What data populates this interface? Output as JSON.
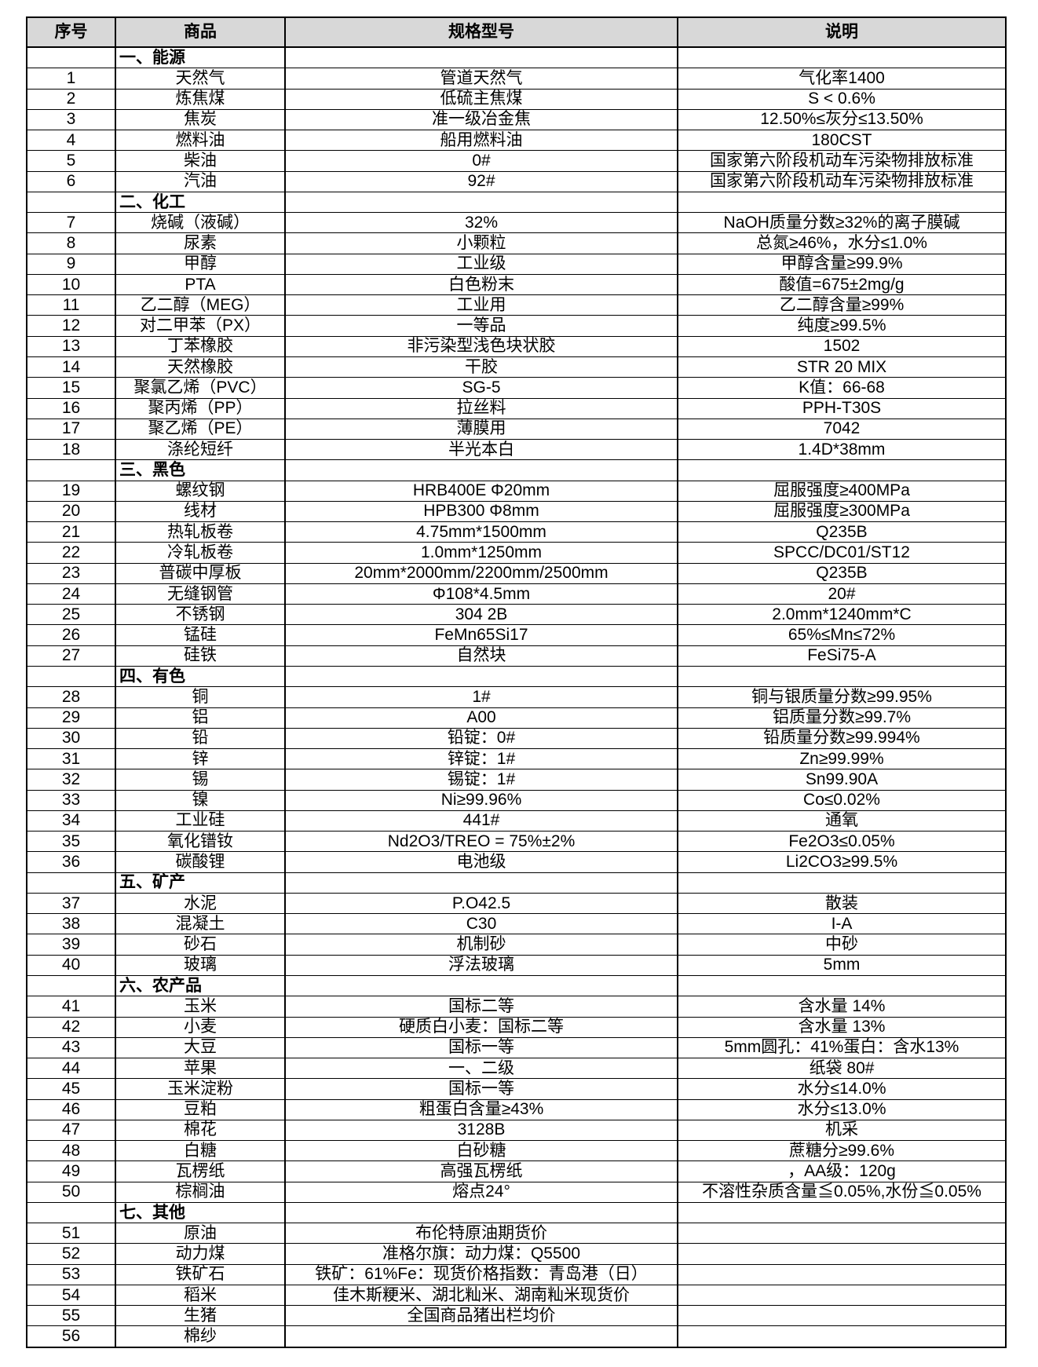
{
  "page": {
    "background": "#ffffff"
  },
  "table": {
    "columns": [
      "序号",
      "商品",
      "规格型号",
      "说明"
    ],
    "header_bg": "#d8d8d8",
    "border_color": "#000000",
    "sections": [
      {
        "title": "一、能源",
        "rows": [
          {
            "no": "1",
            "name": "天然气",
            "spec": "管道天然气",
            "desc": "气化率1400"
          },
          {
            "no": "2",
            "name": "炼焦煤",
            "spec": "低硫主焦煤",
            "desc": "S < 0.6%"
          },
          {
            "no": "3",
            "name": "焦炭",
            "spec": "准一级冶金焦",
            "desc": "12.50%≤灰分≤13.50%"
          },
          {
            "no": "4",
            "name": "燃料油",
            "spec": "船用燃料油",
            "desc": "180CST"
          },
          {
            "no": "5",
            "name": "柴油",
            "spec": "0#",
            "desc": "国家第六阶段机动车污染物排放标准"
          },
          {
            "no": "6",
            "name": "汽油",
            "spec": "92#",
            "desc": "国家第六阶段机动车污染物排放标准"
          }
        ]
      },
      {
        "title": "二、化工",
        "rows": [
          {
            "no": "7",
            "name": "烧碱（液碱）",
            "spec": "32%",
            "desc": "NaOH质量分数≥32%的离子膜碱"
          },
          {
            "no": "8",
            "name": "尿素",
            "spec": "小颗粒",
            "desc": "总氮≥46%，水分≤1.0%"
          },
          {
            "no": "9",
            "name": "甲醇",
            "spec": "工业级",
            "desc": "甲醇含量≥99.9%"
          },
          {
            "no": "10",
            "name": "PTA",
            "spec": "白色粉末",
            "desc": "酸值=675±2mg/g"
          },
          {
            "no": "11",
            "name": "乙二醇（MEG）",
            "spec": "工业用",
            "desc": "乙二醇含量≥99%"
          },
          {
            "no": "12",
            "name": "对二甲苯（PX）",
            "spec": "一等品",
            "desc": "纯度≥99.5%"
          },
          {
            "no": "13",
            "name": "丁苯橡胶",
            "spec": "非污染型浅色块状胶",
            "desc": "1502"
          },
          {
            "no": "14",
            "name": "天然橡胶",
            "spec": "干胶",
            "desc": "STR 20 MIX"
          },
          {
            "no": "15",
            "name": "聚氯乙烯（PVC）",
            "spec": "SG-5",
            "desc": "K值：66-68"
          },
          {
            "no": "16",
            "name": "聚丙烯（PP）",
            "spec": "拉丝料",
            "desc": "PPH-T30S"
          },
          {
            "no": "17",
            "name": "聚乙烯（PE）",
            "spec": "薄膜用",
            "desc": "7042"
          },
          {
            "no": "18",
            "name": "涤纶短纤",
            "spec": "半光本白",
            "desc": "1.4D*38mm"
          }
        ]
      },
      {
        "title": "三、黑色",
        "rows": [
          {
            "no": "19",
            "name": "螺纹钢",
            "spec": "HRB400E Φ20mm",
            "desc": "屈服强度≥400MPa"
          },
          {
            "no": "20",
            "name": "线材",
            "spec": "HPB300 Φ8mm",
            "desc": "屈服强度≥300MPa"
          },
          {
            "no": "21",
            "name": "热轧板卷",
            "spec": "4.75mm*1500mm",
            "desc": "Q235B"
          },
          {
            "no": "22",
            "name": "冷轧板卷",
            "spec": "1.0mm*1250mm",
            "desc": "SPCC/DC01/ST12"
          },
          {
            "no": "23",
            "name": "普碳中厚板",
            "spec": "20mm*2000mm/2200mm/2500mm",
            "desc": "Q235B"
          },
          {
            "no": "24",
            "name": "无缝钢管",
            "spec": "Φ108*4.5mm",
            "desc": "20#"
          },
          {
            "no": "25",
            "name": "不锈钢",
            "spec": "304 2B",
            "desc": "2.0mm*1240mm*C"
          },
          {
            "no": "26",
            "name": "锰硅",
            "spec": "FeMn65Si17",
            "desc": "65%≤Mn≤72%"
          },
          {
            "no": "27",
            "name": "硅铁",
            "spec": "自然块",
            "desc": "FeSi75-A"
          }
        ]
      },
      {
        "title": "四、有色",
        "rows": [
          {
            "no": "28",
            "name": "铜",
            "spec": "1#",
            "desc": "铜与银质量分数≥99.95%"
          },
          {
            "no": "29",
            "name": "铝",
            "spec": "A00",
            "desc": "铝质量分数≥99.7%"
          },
          {
            "no": "30",
            "name": "铅",
            "spec": "铅锭：0#",
            "desc": "铅质量分数≥99.994%"
          },
          {
            "no": "31",
            "name": "锌",
            "spec": "锌锭：1#",
            "desc": "Zn≥99.99%"
          },
          {
            "no": "32",
            "name": "锡",
            "spec": "锡锭：1#",
            "desc": "Sn99.90A"
          },
          {
            "no": "33",
            "name": "镍",
            "spec": "Ni≥99.96%",
            "desc": "Co≤0.02%"
          },
          {
            "no": "34",
            "name": "工业硅",
            "spec": "441#",
            "desc": "通氧"
          },
          {
            "no": "35",
            "name": "氧化镨钕",
            "spec": "Nd2O3/TREO = 75%±2%",
            "desc": "Fe2O3≤0.05%"
          },
          {
            "no": "36",
            "name": "碳酸锂",
            "spec": "电池级",
            "desc": "Li2CO3≥99.5%"
          }
        ]
      },
      {
        "title": "五、矿产",
        "rows": [
          {
            "no": "37",
            "name": "水泥",
            "spec": "P.O42.5",
            "desc": "散装"
          },
          {
            "no": "38",
            "name": "混凝土",
            "spec": "C30",
            "desc": "I-A"
          },
          {
            "no": "39",
            "name": "砂石",
            "spec": "机制砂",
            "desc": "中砂"
          },
          {
            "no": "40",
            "name": "玻璃",
            "spec": "浮法玻璃",
            "desc": "5mm"
          }
        ]
      },
      {
        "title": "六、农产品",
        "rows": [
          {
            "no": "41",
            "name": "玉米",
            "spec": "国标二等",
            "desc": "含水量 14%"
          },
          {
            "no": "42",
            "name": "小麦",
            "spec": "硬质白小麦：国标二等",
            "desc": "含水量 13%"
          },
          {
            "no": "43",
            "name": "大豆",
            "spec": "国标一等",
            "desc": "5mm圆孔：41%蛋白：含水13%"
          },
          {
            "no": "44",
            "name": "苹果",
            "spec": "一、二级",
            "desc": "纸袋 80#"
          },
          {
            "no": "45",
            "name": "玉米淀粉",
            "spec": "国标一等",
            "desc": "水分≤14.0%"
          },
          {
            "no": "46",
            "name": "豆粕",
            "spec": "粗蛋白含量≥43%",
            "desc": "水分≤13.0%"
          },
          {
            "no": "47",
            "name": "棉花",
            "spec": "3128B",
            "desc": "机采"
          },
          {
            "no": "48",
            "name": "白糖",
            "spec": "白砂糖",
            "desc": "蔗糖分≥99.6%"
          },
          {
            "no": "49",
            "name": "瓦楞纸",
            "spec": "高强瓦楞纸",
            "desc": "，AA级：120g"
          },
          {
            "no": "50",
            "name": "棕榈油",
            "spec": "熔点24°",
            "desc": "不溶性杂质含量≦0.05%,水份≦0.05%"
          }
        ]
      },
      {
        "title": "七、其他",
        "rows": [
          {
            "no": "51",
            "name": "原油",
            "spec": "布伦特原油期货价",
            "desc": ""
          },
          {
            "no": "52",
            "name": "动力煤",
            "spec": "准格尔旗：动力煤：Q5500",
            "desc": ""
          },
          {
            "no": "53",
            "name": "铁矿石",
            "spec": "铁矿：61%Fe：现货价格指数：青岛港（日）",
            "desc": ""
          },
          {
            "no": "54",
            "name": "稻米",
            "spec": "佳木斯粳米、湖北籼米、湖南籼米现货价",
            "desc": ""
          },
          {
            "no": "55",
            "name": "生猪",
            "spec": "全国商品猪出栏均价",
            "desc": ""
          },
          {
            "no": "56",
            "name": "棉纱",
            "spec": "",
            "desc": ""
          }
        ]
      }
    ]
  }
}
